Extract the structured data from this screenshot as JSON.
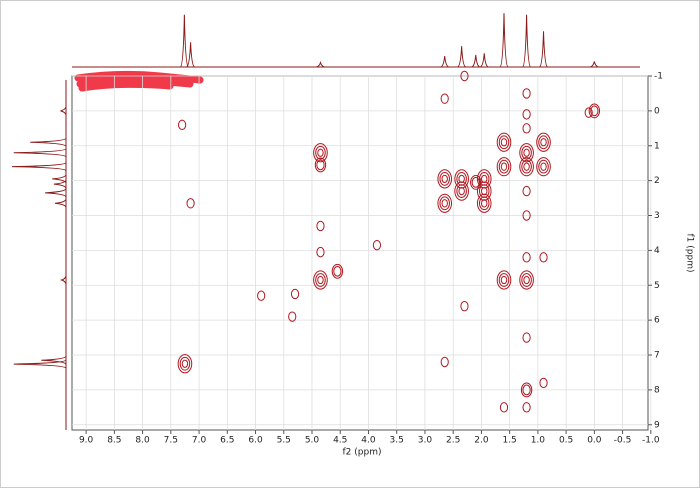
{
  "chart_data": {
    "type": "contour",
    "xlabel": "f2 (ppm)",
    "ylabel": "f1 (ppm)",
    "xlim": [
      9.25,
      -0.95
    ],
    "xticks": [
      {
        "value": 9,
        "label": "9.0"
      },
      8.5,
      {
        "value": 8,
        "label": "8.0"
      },
      7.5,
      {
        "value": 7,
        "label": "7.0"
      },
      6.5,
      {
        "value": 6,
        "label": "6.0"
      },
      5.5,
      {
        "value": 5,
        "label": "5.0"
      },
      4.5,
      {
        "value": 4,
        "label": "4.0"
      },
      3.5,
      {
        "value": 3,
        "label": "3.0"
      },
      2.5,
      {
        "value": 2,
        "label": "2.0"
      },
      1.5,
      {
        "value": 1,
        "label": "1.0"
      },
      0.5,
      {
        "value": 0,
        "label": "0.0"
      },
      -0.5,
      {
        "value": -1,
        "label": "-1.0"
      }
    ],
    "ylim": [
      -1,
      9.15
    ],
    "yticks": [
      -1,
      0,
      1,
      2,
      3,
      4,
      5,
      6,
      7,
      8,
      9
    ],
    "grid": true,
    "color": "#b0171f",
    "peaks": {
      "x": [
        7.25,
        7.3,
        7.15,
        4.85,
        4.85,
        4.85,
        4.85,
        4.85,
        4.55,
        3.85,
        5.9,
        5.3,
        5.35,
        2.65,
        2.65,
        2.35,
        2.35,
        2.1,
        1.95,
        1.95,
        1.95,
        1.6,
        1.6,
        1.6,
        1.2,
        1.2,
        1.2,
        1.2,
        1.2,
        0.9,
        0.9,
        0.0,
        0.1,
        2.3,
        2.65,
        0.9,
        1.2,
        1.2,
        1.6,
        1.2,
        0.9,
        1.2,
        1.2,
        1.2,
        2.65,
        2.3,
        1.2
      ],
      "y": [
        7.25,
        0.4,
        2.65,
        1.2,
        1.55,
        3.3,
        4.05,
        4.85,
        4.6,
        3.85,
        5.3,
        5.25,
        5.9,
        1.95,
        2.65,
        1.95,
        2.3,
        2.05,
        1.95,
        2.3,
        2.65,
        0.9,
        1.6,
        4.85,
        1.2,
        1.6,
        4.85,
        6.5,
        8.0,
        0.9,
        1.6,
        0.0,
        0.05,
        5.6,
        7.2,
        7.8,
        0.5,
        0.1,
        8.5,
        8.5,
        4.2,
        4.2,
        2.3,
        3.0,
        -0.35,
        -1.0,
        -0.5
      ],
      "size": [
        3,
        1,
        1,
        3,
        2,
        1,
        1,
        3,
        2,
        1,
        1,
        1,
        1,
        3,
        3,
        3,
        3,
        2,
        3,
        3,
        3,
        3,
        3,
        3,
        3,
        3,
        3,
        1,
        2,
        3,
        3,
        2,
        1,
        1,
        1,
        1,
        1,
        1,
        1,
        1,
        1,
        1,
        1,
        1,
        1,
        1,
        1
      ]
    },
    "projection": {
      "x": [
        7.26,
        7.15,
        4.85,
        2.65,
        2.35,
        2.1,
        1.95,
        1.6,
        1.2,
        0.9,
        0.0
      ],
      "heights": [
        95,
        45,
        8,
        20,
        38,
        22,
        25,
        98,
        95,
        65,
        10
      ]
    }
  }
}
